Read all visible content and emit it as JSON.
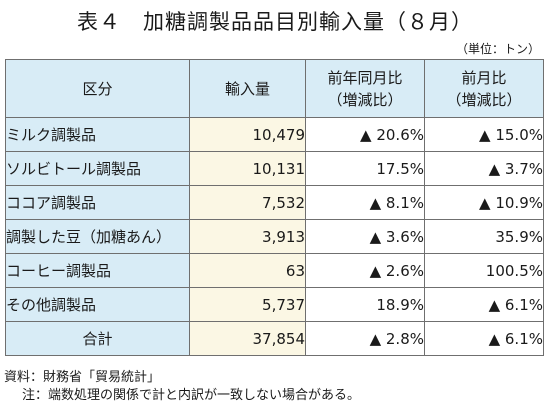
{
  "title": "表４　加糖調製品品目別輸入量（８月）",
  "unit": "（単位：トン）",
  "headers": {
    "category": "区分",
    "import": "輸入量",
    "yoy_line1": "前年同月比",
    "yoy_line2": "（増減比）",
    "mom_line1": "前月比",
    "mom_line2": "（増減比）"
  },
  "rows": [
    {
      "name": "ミルク調製品",
      "volume": "10,479",
      "yoy": "▲ 20.6%",
      "mom": "▲ 15.0%"
    },
    {
      "name": "ソルビトール調製品",
      "volume": "10,131",
      "yoy": "17.5%",
      "mom": "▲ 3.7%"
    },
    {
      "name": "ココア調製品",
      "volume": "7,532",
      "yoy": "▲ 8.1%",
      "mom": "▲ 10.9%"
    },
    {
      "name": "調製した豆（加糖あん）",
      "volume": "3,913",
      "yoy": "▲ 3.6%",
      "mom": "35.9%"
    },
    {
      "name": "コーヒー調製品",
      "volume": "63",
      "yoy": "▲ 2.6%",
      "mom": "100.5%"
    },
    {
      "name": "その他調製品",
      "volume": "5,737",
      "yoy": "18.9%",
      "mom": "▲ 6.1%"
    },
    {
      "name": "合計",
      "volume": "37,854",
      "yoy": "▲ 2.8%",
      "mom": "▲ 6.1%"
    }
  ],
  "footnotes": {
    "source": "資料：財務省「貿易統計」",
    "note": "注：端数処理の関係で計と内訳が一致しない場合がある。"
  },
  "colors": {
    "header_bg": "#d8ecf6",
    "number_bg": "#fbf7e4"
  }
}
